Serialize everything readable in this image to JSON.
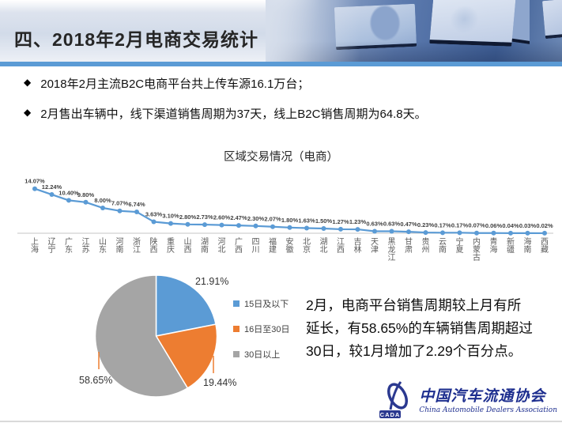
{
  "header": {
    "title": "四、2018年2月电商交易统计"
  },
  "bullet_icon": "◆",
  "bullets": [
    "2018年2月主流B2C电商平台共上传车源16.1万台；",
    "2月售出车辆中，线下渠道销售周期为37天，线上B2C销售周期为64.8天。"
  ],
  "chart_data": [
    {
      "type": "line",
      "title": "区域交易情况（电商）",
      "categories": [
        "上海",
        "辽宁",
        "广东",
        "江苏",
        "山东",
        "河南",
        "浙江",
        "陕西",
        "重庆",
        "山西",
        "湖南",
        "河北",
        "广西",
        "四川",
        "福建",
        "安徽",
        "北京",
        "湖北",
        "江西",
        "吉林",
        "天津",
        "黑龙江",
        "甘肃",
        "贵州",
        "云南",
        "宁夏",
        "内蒙古",
        "青海",
        "新疆",
        "海南",
        "西藏"
      ],
      "values": [
        14.07,
        12.24,
        10.4,
        9.8,
        8.0,
        7.07,
        6.74,
        3.63,
        3.1,
        2.8,
        2.73,
        2.6,
        2.47,
        2.3,
        2.07,
        1.8,
        1.63,
        1.5,
        1.27,
        1.23,
        0.63,
        0.63,
        0.47,
        0.23,
        0.17,
        0.17,
        0.07,
        0.06,
        0.04,
        0.03,
        0.02
      ],
      "unit": "%",
      "line_color": "#5b9bd5",
      "label_color": "#404040",
      "axis_color": "#c6c6c6",
      "ylim": [
        0,
        15
      ],
      "grid": false,
      "legend": "none",
      "data_labels": true
    },
    {
      "type": "pie",
      "labels": [
        "15日及以下",
        "16日至30日",
        "30日以上"
      ],
      "values": [
        21.91,
        19.44,
        58.65
      ],
      "colors": [
        "#5b9bd5",
        "#ed7d31",
        "#a5a5a5"
      ],
      "leader_line_color": "#ed7d31",
      "legend_position": "right",
      "start_angle_deg": 0,
      "unit": "%"
    }
  ],
  "commentary": {
    "lines": [
      "2月，电商平台销售周期较上月有所",
      "延长，有58.65%的车辆销售周期超过",
      "30日，较1月增加了2.29个百分点。"
    ]
  },
  "logo": {
    "cn": "中国汽车流通协会",
    "en": "China Automobile Dealers Association",
    "badge": "CADA",
    "color": "#2b3990"
  },
  "colors": {
    "accent_bar": "#5b9bd5"
  }
}
